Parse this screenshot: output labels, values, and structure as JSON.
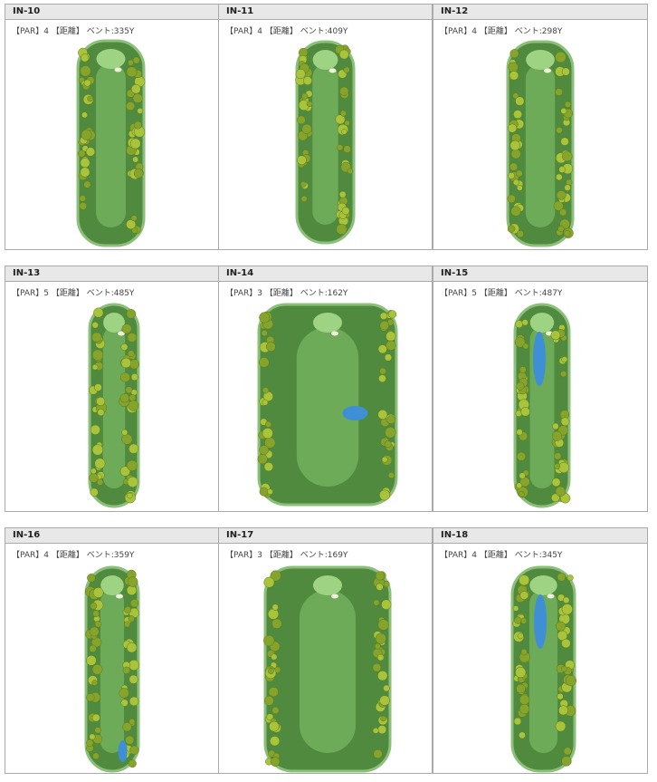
{
  "holes": [
    {
      "title": "IN-10",
      "info": "【PAR】4 【距離】 ベント:335Y"
    },
    {
      "title": "IN-11",
      "info": "【PAR】4 【距離】 ベント:409Y"
    },
    {
      "title": "IN-12",
      "info": "【PAR】4 【距離】 ベント:298Y"
    },
    {
      "title": "IN-13",
      "info": "【PAR】5 【距離】 ベント:485Y"
    },
    {
      "title": "IN-14",
      "info": "【PAR】3 【距離】 ベント:162Y"
    },
    {
      "title": "IN-15",
      "info": "【PAR】5 【距離】 ベント:487Y"
    },
    {
      "title": "IN-16",
      "info": "【PAR】4 【距離】 ベント:359Y"
    },
    {
      "title": "IN-17",
      "info": "【PAR】3 【距離】 ベント:169Y"
    },
    {
      "title": "IN-18",
      "info": "【PAR】4 【距離】 ベント:345Y"
    }
  ]
}
